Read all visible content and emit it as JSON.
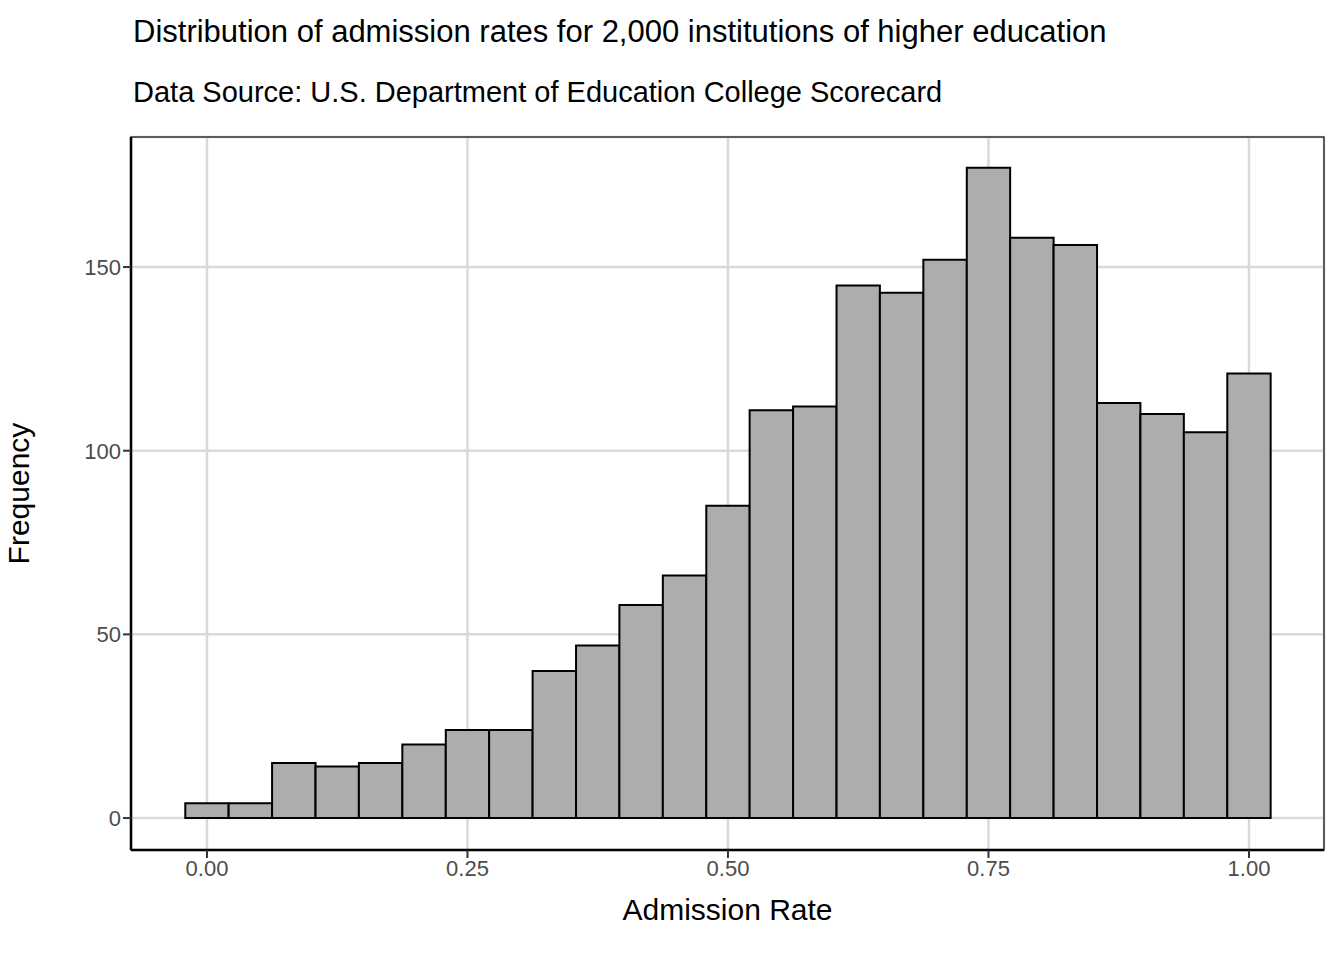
{
  "chart_data": {
    "type": "histogram",
    "title": "Distribution of admission rates for 2,000 institutions of higher education",
    "subtitle": "Data Source: U.S. Department of Education College Scorecard",
    "x_label": "Admission Rate",
    "y_label": "Frequency",
    "bins": [
      -0.0208,
      0.0208,
      0.0625,
      0.1042,
      0.1458,
      0.1875,
      0.2292,
      0.2708,
      0.3125,
      0.3542,
      0.3958,
      0.4375,
      0.4792,
      0.5208,
      0.5625,
      0.6042,
      0.6458,
      0.6875,
      0.7292,
      0.7708,
      0.8125,
      0.8542,
      0.8958,
      0.9375,
      0.9792,
      1.0208
    ],
    "values": [
      4,
      4,
      15,
      14,
      15,
      20,
      24,
      24,
      40,
      47,
      58,
      66,
      85,
      111,
      112,
      145,
      143,
      152,
      177,
      158,
      156,
      113,
      110,
      105,
      121
    ],
    "color": "#adadad",
    "xlim": [
      -0.0729,
      1.072
    ],
    "ylim": [
      -8.7,
      185.4
    ],
    "xticks": [
      {
        "value": 0,
        "label": "0.00"
      },
      {
        "value": 0.25,
        "label": "0.25"
      },
      {
        "value": 0.5,
        "label": "0.50"
      },
      {
        "value": 0.75,
        "label": "0.75"
      },
      {
        "value": 1,
        "label": "1.00"
      }
    ],
    "yticks": [
      0,
      50,
      100,
      150
    ],
    "grid": true
  }
}
